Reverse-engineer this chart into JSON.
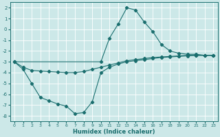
{
  "xlabel": "Humidex (Indice chaleur)",
  "bg_color": "#cce8e8",
  "grid_color": "#ffffff",
  "line_color": "#1a6e6e",
  "xlim": [
    -0.5,
    23.5
  ],
  "ylim": [
    -8.5,
    2.5
  ],
  "yticks": [
    2,
    1,
    0,
    -1,
    -2,
    -3,
    -4,
    -5,
    -6,
    -7,
    -8
  ],
  "xticks": [
    0,
    1,
    2,
    3,
    4,
    5,
    6,
    7,
    8,
    9,
    10,
    11,
    12,
    13,
    14,
    15,
    16,
    17,
    18,
    19,
    20,
    21,
    22,
    23
  ],
  "line1_x": [
    0,
    10,
    11,
    12,
    13,
    14,
    15,
    16,
    17,
    18,
    19,
    20,
    21,
    22,
    23
  ],
  "line1_y": [
    -3.0,
    -3.0,
    -0.8,
    0.5,
    2.0,
    1.8,
    0.7,
    -0.2,
    -1.4,
    -2.0,
    -2.2,
    -2.3,
    -2.3,
    -2.4,
    -2.4
  ],
  "line2_x": [
    0,
    1,
    2,
    3,
    4,
    5,
    6,
    7,
    8,
    9,
    10,
    11,
    12,
    13,
    14,
    15,
    16,
    17,
    18,
    19,
    20,
    21,
    22,
    23
  ],
  "line2_y": [
    -3.0,
    -3.5,
    -3.8,
    -3.85,
    -3.9,
    -3.95,
    -4.0,
    -4.0,
    -3.9,
    -3.7,
    -3.5,
    -3.3,
    -3.1,
    -2.9,
    -2.8,
    -2.7,
    -2.6,
    -2.55,
    -2.5,
    -2.45,
    -2.4,
    -2.4,
    -2.4,
    -2.4
  ],
  "line3_x": [
    0,
    1,
    2,
    3,
    4,
    5,
    6,
    7,
    8,
    9,
    10,
    11,
    12,
    13,
    14,
    15,
    16,
    17,
    18,
    19,
    20,
    21,
    22,
    23
  ],
  "line3_y": [
    -3.0,
    -3.7,
    -5.0,
    -6.3,
    -6.6,
    -6.9,
    -7.1,
    -7.8,
    -7.7,
    -6.7,
    -4.0,
    -3.5,
    -3.2,
    -3.0,
    -2.9,
    -2.8,
    -2.7,
    -2.6,
    -2.55,
    -2.5,
    -2.45,
    -2.4,
    -2.4,
    -2.4
  ]
}
